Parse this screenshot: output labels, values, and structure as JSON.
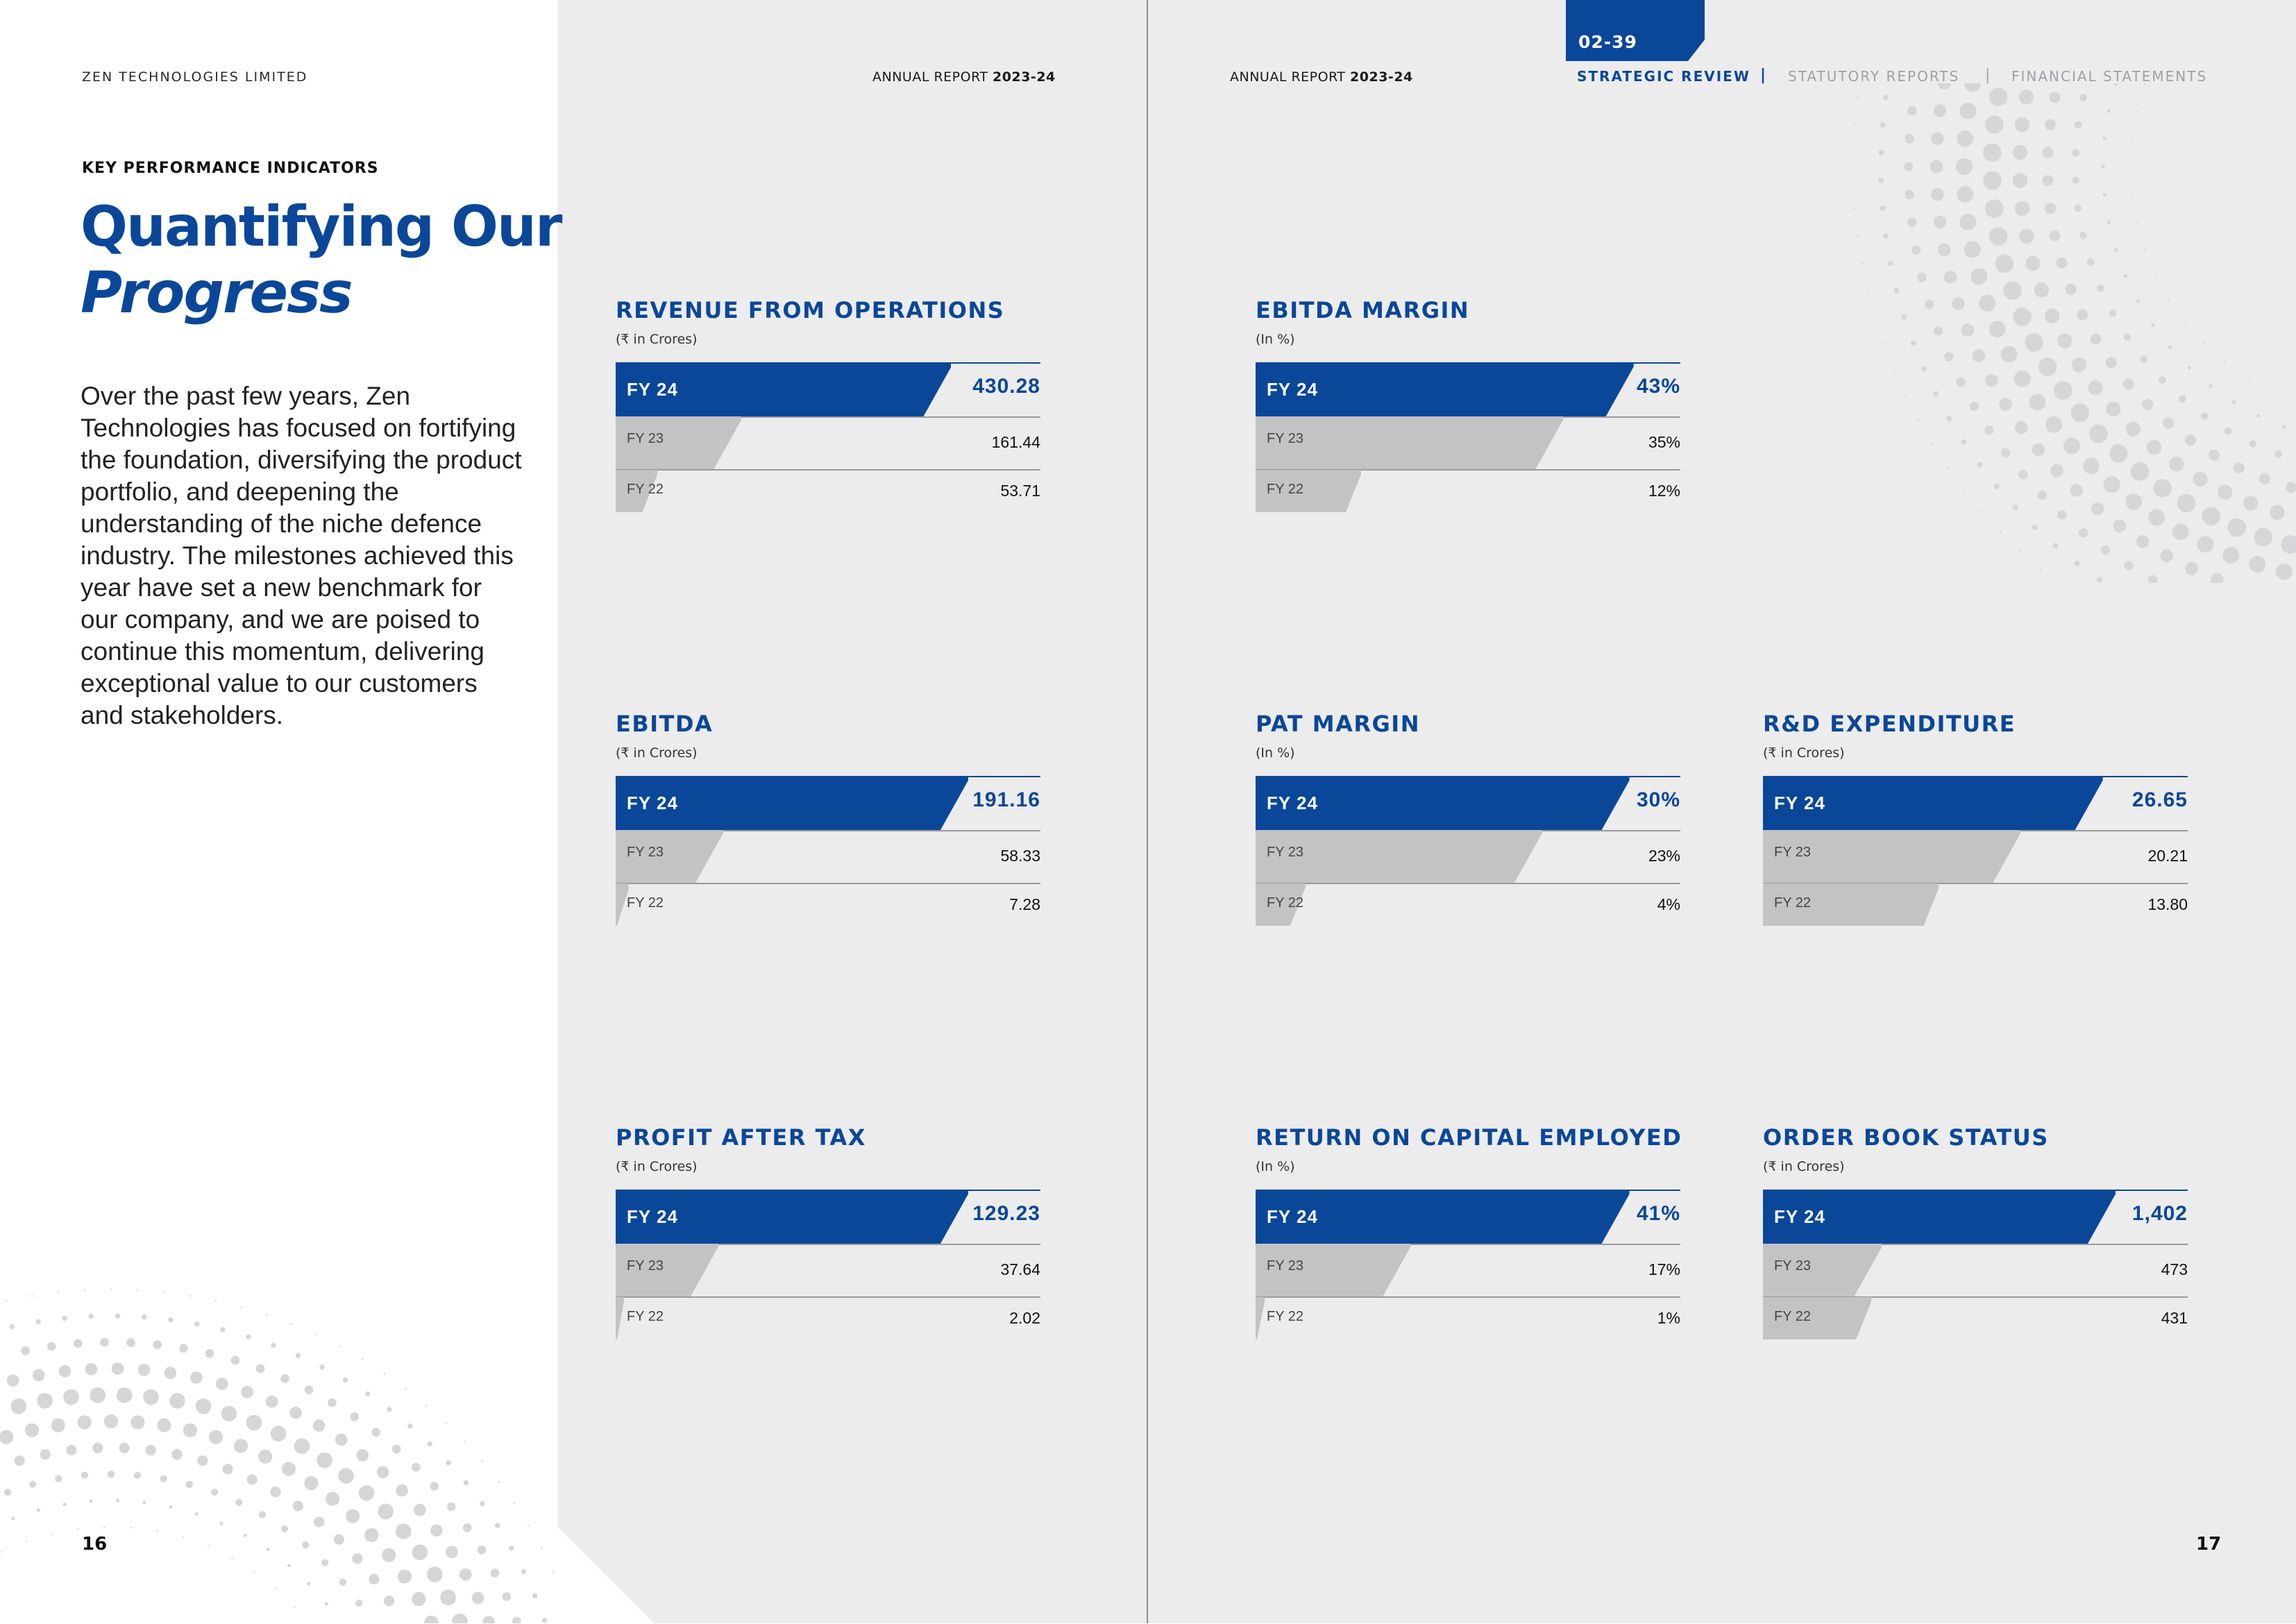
{
  "header": {
    "company": "ZEN TECHNOLOGIES LIMITED",
    "report_left_prefix": "ANNUAL REPORT ",
    "report_left_year": "2023-24",
    "report_right_prefix": "ANNUAL REPORT ",
    "report_right_year": "2023-24",
    "tab_pages": "02-39",
    "nav": [
      "STRATEGIC REVIEW",
      "STATUTORY REPORTS",
      "FINANCIAL STATEMENTS"
    ],
    "nav_separator": "|"
  },
  "intro": {
    "kpi_label": "KEY PERFORMANCE INDICATORS",
    "title_line1": "Quantifying Our",
    "title_line2": "Progress",
    "body": "Over the past few years, Zen Technologies has focused on fortifying the foundation, diversifying the product portfolio, and deepening the understanding of the niche defence industry. The milestones achieved this year have set a new benchmark for our company, and we are poised to continue this momentum, delivering exceptional value to our customers and stakeholders."
  },
  "footer": {
    "page_left": "16",
    "page_right": "17"
  },
  "colors": {
    "brand_blue": "#0a4799",
    "bar_grey": "#c3c3c4",
    "panel_grey": "#ececed"
  },
  "chart_data": [
    {
      "type": "bar",
      "title": "REVENUE FROM OPERATIONS",
      "unit": "(₹ in Crores)",
      "categories": [
        "FY 24",
        "FY 23",
        "FY 22"
      ],
      "values": [
        430.28,
        161.44,
        53.71
      ],
      "labels": [
        "430.28",
        "161.44",
        "53.71"
      ]
    },
    {
      "type": "bar",
      "title": "EBITDA MARGIN",
      "unit": "(In %)",
      "categories": [
        "FY 24",
        "FY 23",
        "FY 22"
      ],
      "values": [
        43,
        35,
        12
      ],
      "labels": [
        "43%",
        "35%",
        "12%"
      ]
    },
    {
      "type": "bar",
      "title": "EBITDA",
      "unit": "(₹ in Crores)",
      "categories": [
        "FY 24",
        "FY 23",
        "FY 22"
      ],
      "values": [
        191.16,
        58.33,
        7.28
      ],
      "labels": [
        "191.16",
        "58.33",
        "7.28"
      ]
    },
    {
      "type": "bar",
      "title": "PAT MARGIN",
      "unit": "(In %)",
      "categories": [
        "FY 24",
        "FY 23",
        "FY 22"
      ],
      "values": [
        30,
        23,
        4
      ],
      "labels": [
        "30%",
        "23%",
        "4%"
      ]
    },
    {
      "type": "bar",
      "title": "R&D EXPENDITURE",
      "unit": "(₹ in Crores)",
      "categories": [
        "FY 24",
        "FY 23",
        "FY 22"
      ],
      "values": [
        26.65,
        20.21,
        13.8
      ],
      "labels": [
        "26.65",
        "20.21",
        "13.80"
      ]
    },
    {
      "type": "bar",
      "title": "PROFIT AFTER TAX",
      "unit": "(₹ in Crores)",
      "categories": [
        "FY 24",
        "FY 23",
        "FY 22"
      ],
      "values": [
        129.23,
        37.64,
        2.02
      ],
      "labels": [
        "129.23",
        "37.64",
        "2.02"
      ]
    },
    {
      "type": "bar",
      "title": "RETURN ON CAPITAL EMPLOYED",
      "unit": "(In %)",
      "categories": [
        "FY 24",
        "FY 23",
        "FY 22"
      ],
      "values": [
        41,
        17,
        1
      ],
      "labels": [
        "41%",
        "17%",
        "1%"
      ]
    },
    {
      "type": "bar",
      "title": "ORDER BOOK STATUS",
      "unit": "(₹ in Crores)",
      "categories": [
        "FY 24",
        "FY 23",
        "FY 22"
      ],
      "values": [
        1402,
        473,
        431
      ],
      "labels": [
        "1,402",
        "473",
        "431"
      ]
    }
  ]
}
